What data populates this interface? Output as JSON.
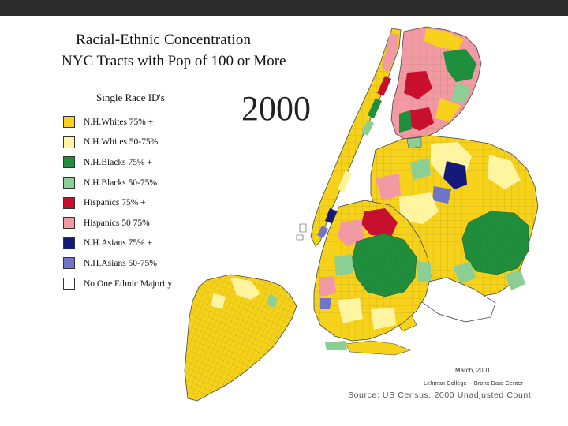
{
  "title": "Racial-Ethnic Concentration",
  "subtitle": "NYC Tracts with Pop of 100 or More",
  "year": "2000",
  "legend": {
    "title": "Single Race ID's",
    "items": [
      {
        "label": "N.H.Whites 75% +",
        "color": "#f7d21a"
      },
      {
        "label": "N.H.Whites 50-75%",
        "color": "#fff4a0"
      },
      {
        "label": "N.H.Blacks 75% +",
        "color": "#1e8f3c"
      },
      {
        "label": "N.H.Blacks 50-75%",
        "color": "#8ccf95"
      },
      {
        "label": "Hispanics 75% +",
        "color": "#c8102e"
      },
      {
        "label": "Hispanics 50 75%",
        "color": "#f29aa3"
      },
      {
        "label": "N.H.Asians 75% +",
        "color": "#141a7a"
      },
      {
        "label": "N.H.Asians 50-75%",
        "color": "#6f75c8"
      },
      {
        "label": "No One Ethnic Majority",
        "color": "#ffffff"
      }
    ]
  },
  "footer": {
    "date": "March, 2001",
    "org": "Lehman College -- Bronx Data Center",
    "source": "Source: US Census, 2000 Unadjusted Count"
  }
}
